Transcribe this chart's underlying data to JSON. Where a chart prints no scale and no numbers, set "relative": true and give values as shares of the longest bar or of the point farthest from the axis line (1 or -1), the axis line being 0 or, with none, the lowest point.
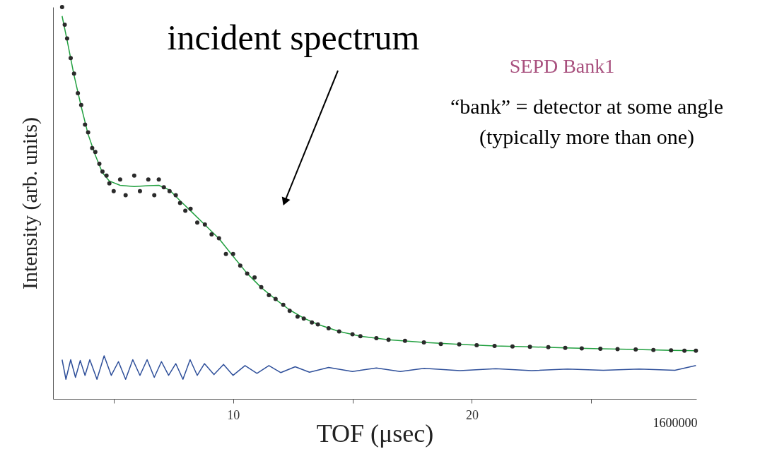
{
  "chart_data": {
    "type": "scatter",
    "relative": true,
    "xlabel": "TOF (μsec)",
    "ylabel": "Intensity (arb. units)",
    "xlim": [
      2.46,
      29.4
    ],
    "xticks": [
      {
        "value": 5,
        "label": null
      },
      10,
      {
        "value": 15,
        "label": null
      },
      20,
      {
        "value": 25,
        "label": null
      }
    ],
    "tick_labels": "x",
    "grid": false,
    "annotations": [
      {
        "text": "incident spectrum",
        "x": 12.16,
        "y": 0.503
      },
      "SEPD Bank1",
      "“bank” = detector at some angle",
      "(typically more than one)",
      "1600000"
    ],
    "series": [
      {
        "marker": "circle",
        "color": "#2a2a2a",
        "x": [
          2.84,
          2.95,
          3.05,
          3.2,
          3.34,
          3.5,
          3.64,
          3.8,
          3.93,
          4.1,
          4.23,
          4.4,
          4.53,
          4.7,
          4.82,
          5.0,
          5.27,
          5.5,
          5.86,
          6.1,
          6.45,
          6.7,
          6.89,
          7.1,
          7.34,
          7.6,
          7.78,
          8.0,
          8.22,
          8.5,
          8.82,
          9.1,
          9.41,
          9.7,
          10.0,
          10.3,
          10.59,
          10.9,
          11.18,
          11.5,
          11.78,
          12.1,
          12.37,
          12.7,
          12.96,
          13.3,
          13.55,
          14.0,
          14.44,
          15.0,
          15.33,
          16.0,
          16.51,
          17.2,
          17.99,
          18.7,
          19.47,
          20.2,
          20.95,
          21.7,
          22.43,
          23.2,
          23.91,
          24.6,
          25.38,
          26.1,
          26.86,
          27.6,
          28.34,
          28.9,
          29.38
        ],
        "values": [
          1.0,
          0.955,
          0.92,
          0.87,
          0.83,
          0.78,
          0.75,
          0.7,
          0.68,
          0.64,
          0.63,
          0.6,
          0.58,
          0.57,
          0.55,
          0.53,
          0.56,
          0.52,
          0.57,
          0.53,
          0.56,
          0.52,
          0.56,
          0.54,
          0.53,
          0.52,
          0.5,
          0.48,
          0.485,
          0.45,
          0.445,
          0.42,
          0.41,
          0.37,
          0.37,
          0.34,
          0.32,
          0.31,
          0.285,
          0.265,
          0.255,
          0.24,
          0.225,
          0.21,
          0.205,
          0.195,
          0.19,
          0.18,
          0.172,
          0.165,
          0.16,
          0.155,
          0.151,
          0.148,
          0.144,
          0.14,
          0.139,
          0.137,
          0.135,
          0.134,
          0.133,
          0.132,
          0.13,
          0.129,
          0.128,
          0.127,
          0.126,
          0.125,
          0.124,
          0.123,
          0.123
        ]
      },
      {
        "type": "line",
        "color": "#22a040",
        "x": [
          2.84,
          3.05,
          3.34,
          3.64,
          3.93,
          4.23,
          4.53,
          4.82,
          5.27,
          5.86,
          6.45,
          6.89,
          7.34,
          7.78,
          8.22,
          8.82,
          9.41,
          10.0,
          10.59,
          11.18,
          11.78,
          12.37,
          12.96,
          13.55,
          14.44,
          15.33,
          16.51,
          17.99,
          19.47,
          20.95,
          22.43,
          23.91,
          25.38,
          26.86,
          28.34,
          29.38
        ],
        "values": [
          0.977,
          0.915,
          0.826,
          0.746,
          0.675,
          0.622,
          0.577,
          0.556,
          0.545,
          0.542,
          0.544,
          0.545,
          0.533,
          0.506,
          0.48,
          0.444,
          0.409,
          0.364,
          0.32,
          0.284,
          0.254,
          0.227,
          0.206,
          0.19,
          0.172,
          0.16,
          0.151,
          0.144,
          0.139,
          0.135,
          0.133,
          0.13,
          0.128,
          0.126,
          0.124,
          0.123
        ]
      },
      {
        "type": "line",
        "color": "#2e4f9a",
        "x": [
          2.84,
          3.0,
          3.2,
          3.4,
          3.6,
          3.8,
          4.0,
          4.3,
          4.6,
          4.9,
          5.2,
          5.5,
          5.8,
          6.1,
          6.4,
          6.7,
          7.0,
          7.3,
          7.6,
          7.9,
          8.2,
          8.5,
          8.8,
          9.2,
          9.6,
          10.0,
          10.5,
          11.0,
          11.5,
          12.0,
          12.6,
          13.2,
          14.0,
          15.0,
          16.0,
          17.0,
          18.0,
          19.5,
          21.0,
          22.5,
          24.0,
          25.5,
          27.0,
          28.5,
          29.38
        ],
        "values": [
          0.1,
          0.05,
          0.1,
          0.055,
          0.098,
          0.06,
          0.1,
          0.05,
          0.11,
          0.06,
          0.095,
          0.05,
          0.1,
          0.06,
          0.1,
          0.055,
          0.095,
          0.06,
          0.09,
          0.05,
          0.1,
          0.06,
          0.09,
          0.062,
          0.088,
          0.06,
          0.085,
          0.065,
          0.085,
          0.067,
          0.082,
          0.068,
          0.08,
          0.07,
          0.079,
          0.07,
          0.078,
          0.072,
          0.077,
          0.072,
          0.076,
          0.073,
          0.076,
          0.073,
          0.085
        ]
      }
    ]
  }
}
